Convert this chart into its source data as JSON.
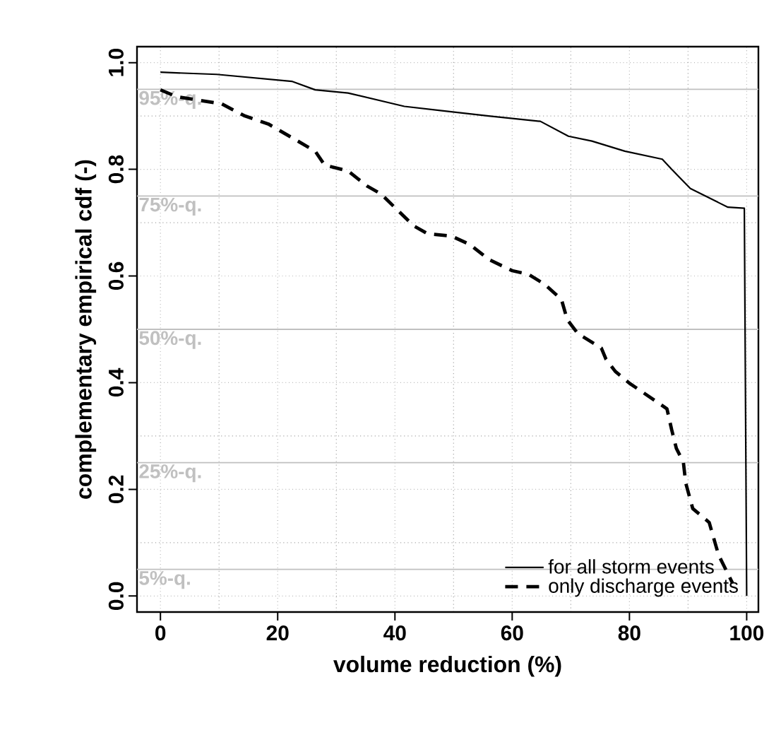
{
  "chart_data": {
    "type": "line",
    "xlabel": "volume reduction (%)",
    "ylabel": "complementary empirical cdf (-)",
    "xlim": [
      -4,
      102
    ],
    "ylim": [
      -0.03,
      1.03
    ],
    "xticks": [
      0,
      20,
      40,
      60,
      80,
      100
    ],
    "yticks": [
      {
        "value": 0,
        "label": "0.0"
      },
      {
        "value": 0.2,
        "label": "0.2"
      },
      {
        "value": 0.4,
        "label": "0.4"
      },
      {
        "value": 0.6,
        "label": "0.6"
      },
      {
        "value": 0.8,
        "label": "0.8"
      },
      {
        "value": 1,
        "label": "1.0"
      }
    ],
    "grid": true,
    "legend": "bottom right",
    "series": [
      {
        "name": "for all storm events",
        "color": "#000000",
        "line_style": "solid",
        "x": [
          0,
          9.6,
          22.4,
          26.4,
          32,
          41.6,
          48,
          56,
          64.8,
          69.6,
          73.6,
          79.2,
          85.6,
          87.2,
          90.4,
          94.4,
          96.8,
          99.6,
          100
        ],
        "values": [
          0.982,
          0.978,
          0.965,
          0.949,
          0.943,
          0.918,
          0.91,
          0.9,
          0.89,
          0.862,
          0.853,
          0.834,
          0.819,
          0.8,
          0.764,
          0.742,
          0.729,
          0.727,
          0.0
        ]
      },
      {
        "name": "only discharge events",
        "color": "#000000",
        "line_style": "dashed",
        "x": [
          0,
          2.8,
          10.4,
          14.4,
          18.4,
          26.4,
          28,
          32,
          35.2,
          37.6,
          43.2,
          45.6,
          49.6,
          52.8,
          56,
          60,
          62.8,
          65.6,
          68.4,
          69.4,
          71.2,
          75.2,
          76,
          77.6,
          80,
          86.4,
          87.2,
          88,
          89.2,
          89.6,
          90.8,
          93.6,
          95.2,
          97.6
        ],
        "values": [
          0.949,
          0.936,
          0.923,
          0.9,
          0.885,
          0.834,
          0.808,
          0.797,
          0.769,
          0.754,
          0.694,
          0.679,
          0.675,
          0.659,
          0.631,
          0.61,
          0.603,
          0.584,
          0.556,
          0.518,
          0.492,
          0.465,
          0.444,
          0.421,
          0.399,
          0.351,
          0.312,
          0.277,
          0.251,
          0.212,
          0.164,
          0.138,
          0.077,
          0.024
        ]
      }
    ],
    "ref_lines": [
      {
        "axis": "y",
        "value": 0.95,
        "label": "95%-q.",
        "color": "#c0c0c0"
      },
      {
        "axis": "y",
        "value": 0.75,
        "label": "75%-q.",
        "color": "#c0c0c0"
      },
      {
        "axis": "y",
        "value": 0.5,
        "label": "50%-q.",
        "color": "#c0c0c0"
      },
      {
        "axis": "y",
        "value": 0.25,
        "label": "25%-q.",
        "color": "#c0c0c0"
      },
      {
        "axis": "y",
        "value": 0.05,
        "label": "5%-q.",
        "color": "#c0c0c0"
      }
    ]
  }
}
